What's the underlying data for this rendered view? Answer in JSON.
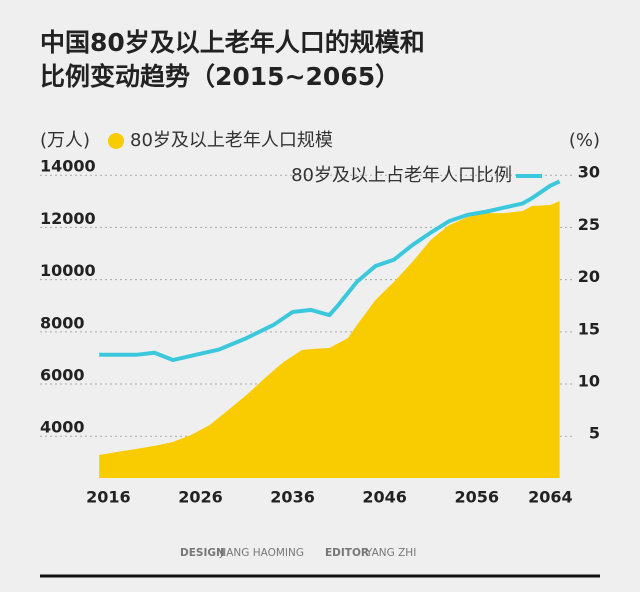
{
  "chart_data": {
    "type": "area-line",
    "title": [
      "中国80岁及以上老年人口的规模和",
      "比例变动趋势（2015~2065）"
    ],
    "y_label": "(万人)",
    "y2_label": "(%)",
    "xlim": [
      2014,
      2067
    ],
    "xticks": [
      2016,
      2026,
      2036,
      2046,
      2056,
      2064
    ],
    "ylim": [
      2400,
      14200
    ],
    "yticks": [
      4000,
      6000,
      8000,
      10000,
      12000,
      14000
    ],
    "y2lim": [
      1,
      30.5
    ],
    "y2ticks": [
      5,
      10,
      15,
      20,
      25,
      30
    ],
    "grid": true,
    "series": [
      {
        "name": "80岁及以上老年人口规模",
        "color": "#f8cc00",
        "kind": "area",
        "x": [
          2015,
          2017,
          2019,
          2021,
          2023,
          2025,
          2027,
          2029,
          2031,
          2033,
          2035,
          2037,
          2038,
          2040,
          2042,
          2043,
          2045,
          2047,
          2049,
          2051,
          2053,
          2055,
          2057,
          2059,
          2061,
          2062,
          2064,
          2065
        ],
        "values": [
          3280,
          3400,
          3510,
          3630,
          3780,
          4050,
          4430,
          5000,
          5580,
          6230,
          6840,
          7300,
          7340,
          7380,
          7760,
          8260,
          9220,
          9910,
          10670,
          11520,
          12090,
          12400,
          12550,
          12550,
          12630,
          12820,
          12860,
          13010
        ]
      },
      {
        "name": "80岁及以上占老年人口比例",
        "color": "#3cc8dc",
        "kind": "line",
        "axis": "y2",
        "x": [
          2015,
          2019,
          2021,
          2023,
          2025,
          2028,
          2031,
          2034,
          2036,
          2038,
          2040,
          2041,
          2043,
          2045,
          2047,
          2049,
          2051,
          2053,
          2055,
          2057,
          2059,
          2061,
          2062,
          2064,
          2065
        ],
        "values": [
          12.8,
          12.8,
          13.0,
          12.3,
          12.7,
          13.3,
          14.4,
          15.7,
          16.9,
          17.1,
          16.6,
          17.6,
          19.8,
          21.3,
          21.9,
          23.3,
          24.5,
          25.6,
          26.2,
          26.5,
          26.9,
          27.3,
          27.8,
          29.0,
          29.4
        ]
      }
    ],
    "credits": [
      "DESIGN",
      "JIANG HAOMING",
      "EDITOR",
      "YANG ZHI"
    ]
  }
}
